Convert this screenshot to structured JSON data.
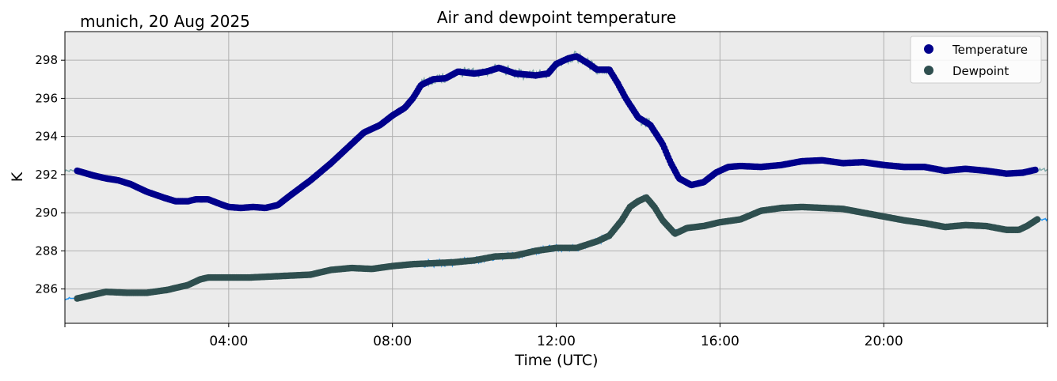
{
  "chart_data": {
    "type": "line",
    "title": "Air and dewpoint temperature",
    "subtitle": "munich, 20 Aug 2025",
    "xlabel": "Time (UTC)",
    "ylabel": "K",
    "xlim": [
      0,
      24
    ],
    "ylim": [
      284.2,
      299.5
    ],
    "x_ticks": [
      4,
      8,
      12,
      16,
      20
    ],
    "x_tick_labels": [
      "04:00",
      "08:00",
      "12:00",
      "16:00",
      "20:00"
    ],
    "y_ticks": [
      286,
      288,
      290,
      292,
      294,
      296,
      298
    ],
    "y_tick_labels": [
      "286",
      "288",
      "290",
      "292",
      "294",
      "296",
      "298"
    ],
    "grid": true,
    "legend_position": "top-right",
    "legend": [
      "Temperature",
      "Dewpoint"
    ],
    "colors": {
      "temperature_marker": "#00008b",
      "dewpoint_marker": "#2f4f4f",
      "temperature_raw": "#7faaaa",
      "dewpoint_raw": "#2196f3",
      "plot_background": "#ebebeb",
      "grid": "#b0b0b0"
    },
    "series": [
      {
        "name": "Temperature",
        "x": [
          0.3,
          0.7,
          1.0,
          1.3,
          1.6,
          2.0,
          2.4,
          2.7,
          3.0,
          3.2,
          3.5,
          3.8,
          4.0,
          4.3,
          4.6,
          4.9,
          5.2,
          5.5,
          6.0,
          6.5,
          7.0,
          7.3,
          7.7,
          8.0,
          8.3,
          8.5,
          8.7,
          9.0,
          9.3,
          9.6,
          10.0,
          10.3,
          10.6,
          11.0,
          11.5,
          11.8,
          12.0,
          12.3,
          12.5,
          12.8,
          13.0,
          13.3,
          13.5,
          13.7,
          14.0,
          14.3,
          14.6,
          14.8,
          15.0,
          15.3,
          15.6,
          15.9,
          16.2,
          16.5,
          17.0,
          17.5,
          18.0,
          18.5,
          19.0,
          19.5,
          20.0,
          20.5,
          21.0,
          21.5,
          22.0,
          22.5,
          23.0,
          23.4,
          23.7
        ],
        "values": [
          292.2,
          291.95,
          291.8,
          291.7,
          291.5,
          291.1,
          290.8,
          290.6,
          290.6,
          290.7,
          290.7,
          290.45,
          290.3,
          290.25,
          290.3,
          290.25,
          290.4,
          290.9,
          291.7,
          292.6,
          293.6,
          294.2,
          294.6,
          295.1,
          295.5,
          296.0,
          296.7,
          297.0,
          297.05,
          297.4,
          297.3,
          297.4,
          297.6,
          297.3,
          297.2,
          297.3,
          297.8,
          298.1,
          298.2,
          297.8,
          297.5,
          297.5,
          296.8,
          296.0,
          295.0,
          294.6,
          293.6,
          292.6,
          291.8,
          291.45,
          291.6,
          292.1,
          292.4,
          292.45,
          292.4,
          292.5,
          292.7,
          292.75,
          292.6,
          292.65,
          292.5,
          292.4,
          292.4,
          292.2,
          292.3,
          292.2,
          292.05,
          292.1,
          292.25
        ]
      },
      {
        "name": "Dewpoint",
        "x": [
          0.3,
          0.7,
          1.0,
          1.5,
          2.0,
          2.5,
          3.0,
          3.3,
          3.5,
          4.0,
          4.5,
          5.0,
          5.5,
          6.0,
          6.5,
          7.0,
          7.5,
          8.0,
          8.5,
          9.0,
          9.5,
          10.0,
          10.5,
          11.0,
          11.5,
          12.0,
          12.5,
          13.0,
          13.3,
          13.6,
          13.8,
          14.0,
          14.2,
          14.4,
          14.6,
          14.9,
          15.2,
          15.6,
          16.0,
          16.5,
          17.0,
          17.5,
          18.0,
          18.5,
          19.0,
          19.5,
          20.0,
          20.5,
          21.0,
          21.5,
          22.0,
          22.5,
          23.0,
          23.3,
          23.5,
          23.75
        ],
        "values": [
          285.5,
          285.7,
          285.85,
          285.8,
          285.8,
          285.95,
          286.2,
          286.5,
          286.6,
          286.6,
          286.6,
          286.65,
          286.7,
          286.75,
          287.0,
          287.1,
          287.05,
          287.2,
          287.3,
          287.35,
          287.4,
          287.5,
          287.7,
          287.75,
          288.0,
          288.15,
          288.15,
          288.5,
          288.8,
          289.6,
          290.3,
          290.6,
          290.8,
          290.3,
          289.6,
          288.9,
          289.2,
          289.3,
          289.5,
          289.65,
          290.1,
          290.25,
          290.3,
          290.25,
          290.2,
          290.0,
          289.8,
          289.6,
          289.45,
          289.25,
          289.35,
          289.3,
          289.1,
          289.1,
          289.3,
          289.65
        ]
      }
    ]
  }
}
